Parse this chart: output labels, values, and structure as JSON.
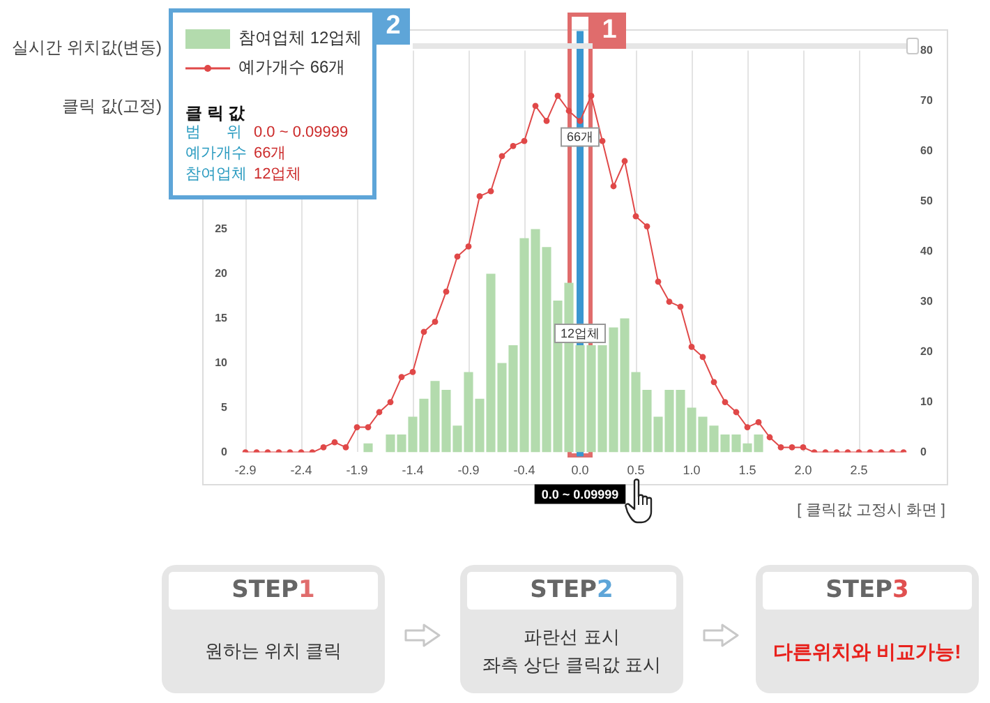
{
  "chart_data": {
    "type": "bar",
    "categories": [
      "-2.9",
      null,
      null,
      null,
      null,
      "-2.4",
      null,
      null,
      null,
      null,
      "-1.9",
      null,
      null,
      null,
      null,
      "-1.4",
      null,
      null,
      null,
      null,
      "-0.9",
      null,
      null,
      null,
      null,
      "-0.4",
      null,
      null,
      null,
      null,
      "0.0",
      null,
      null,
      null,
      null,
      "0.5",
      null,
      null,
      null,
      null,
      "1.0",
      null,
      null,
      null,
      null,
      "1.5",
      null,
      null,
      null,
      null,
      "2.0",
      null,
      null,
      null,
      null,
      "2.5",
      null,
      null,
      null,
      null
    ],
    "series": [
      {
        "name": "참여업체 12업체",
        "color": "#b3dbad",
        "values": [
          0,
          0,
          0,
          0,
          0,
          0,
          0,
          0,
          0,
          0,
          0,
          1,
          0,
          2,
          2,
          4,
          6,
          8,
          7,
          3,
          9,
          6,
          20,
          10,
          12,
          24,
          25,
          23,
          17,
          19,
          12,
          12,
          12,
          14,
          15,
          9,
          7,
          4,
          7,
          7,
          5,
          4,
          3,
          2,
          2,
          1,
          2,
          0,
          0,
          0,
          0,
          0,
          0,
          0,
          0,
          0,
          0,
          0,
          0,
          0
        ],
        "value_labels": [
          null,
          null,
          null,
          null,
          null,
          null,
          null,
          null,
          null,
          null,
          null,
          null,
          null,
          null,
          null,
          null,
          null,
          null,
          null,
          null,
          null,
          null,
          null,
          null,
          null,
          null,
          null,
          null,
          null,
          null,
          "12업체",
          null,
          null,
          null,
          null,
          null,
          null,
          null,
          null,
          null,
          null,
          null,
          null,
          null,
          null,
          null,
          null,
          null,
          null,
          null,
          null,
          null,
          null,
          null,
          null,
          null,
          null,
          null,
          null,
          null
        ]
      },
      {
        "name": "예가개수 66개",
        "type": "line",
        "axis": "y2",
        "color": "#e04848",
        "values": [
          0,
          0,
          0,
          0,
          0,
          0,
          0,
          1,
          2,
          1,
          5,
          5,
          8,
          10,
          15,
          16,
          24,
          26,
          32,
          39,
          41,
          51,
          52,
          59,
          61,
          62,
          69,
          66,
          71,
          68,
          66,
          71,
          62,
          53,
          58,
          47,
          45,
          34,
          30,
          29,
          21,
          19,
          14,
          10,
          8,
          5,
          6,
          3,
          1,
          1,
          1,
          0,
          0,
          0,
          0,
          0,
          0,
          0,
          0,
          0
        ],
        "value_labels": [
          null,
          null,
          null,
          null,
          null,
          null,
          null,
          null,
          null,
          null,
          null,
          null,
          null,
          null,
          null,
          null,
          null,
          null,
          null,
          null,
          null,
          null,
          null,
          null,
          null,
          null,
          null,
          null,
          null,
          null,
          "66개",
          null,
          null,
          null,
          null,
          null,
          null,
          null,
          null,
          null,
          null,
          null,
          null,
          null,
          null,
          null,
          null,
          null,
          null,
          null,
          null,
          null,
          null,
          null,
          null,
          null,
          null,
          null,
          null,
          null
        ]
      }
    ],
    "ylim": [
      0,
      45
    ],
    "yticks": [
      0,
      5,
      10,
      15,
      20,
      25
    ],
    "y2lim": [
      0,
      80
    ],
    "y2ticks": [
      0,
      10,
      20,
      30,
      40,
      50,
      60,
      70,
      80
    ],
    "grid": "x",
    "legend": "top left",
    "marker": "circle",
    "ref_lines": [
      {
        "axis": "x",
        "value": "0.0",
        "label": "0.0 ~ 0.09999",
        "color": "#3a96d0"
      }
    ],
    "annotations": [
      "실시간 위치값(변동)",
      "클릭 값(고정)",
      "클 릭 값",
      "범      위",
      "0.0 ~ 0.09999",
      "예가개수",
      "66개",
      "참여업체",
      "12업체",
      "1",
      "2",
      "[ 클릭값 고정시 화면 ]",
      "STEP",
      "1",
      "원하는 위치 클릭",
      "STEP",
      "2",
      "파란선 표시",
      "좌측 상단 클릭값 표시",
      "STEP",
      "3",
      "다른위치와 비교가능!"
    ]
  }
}
